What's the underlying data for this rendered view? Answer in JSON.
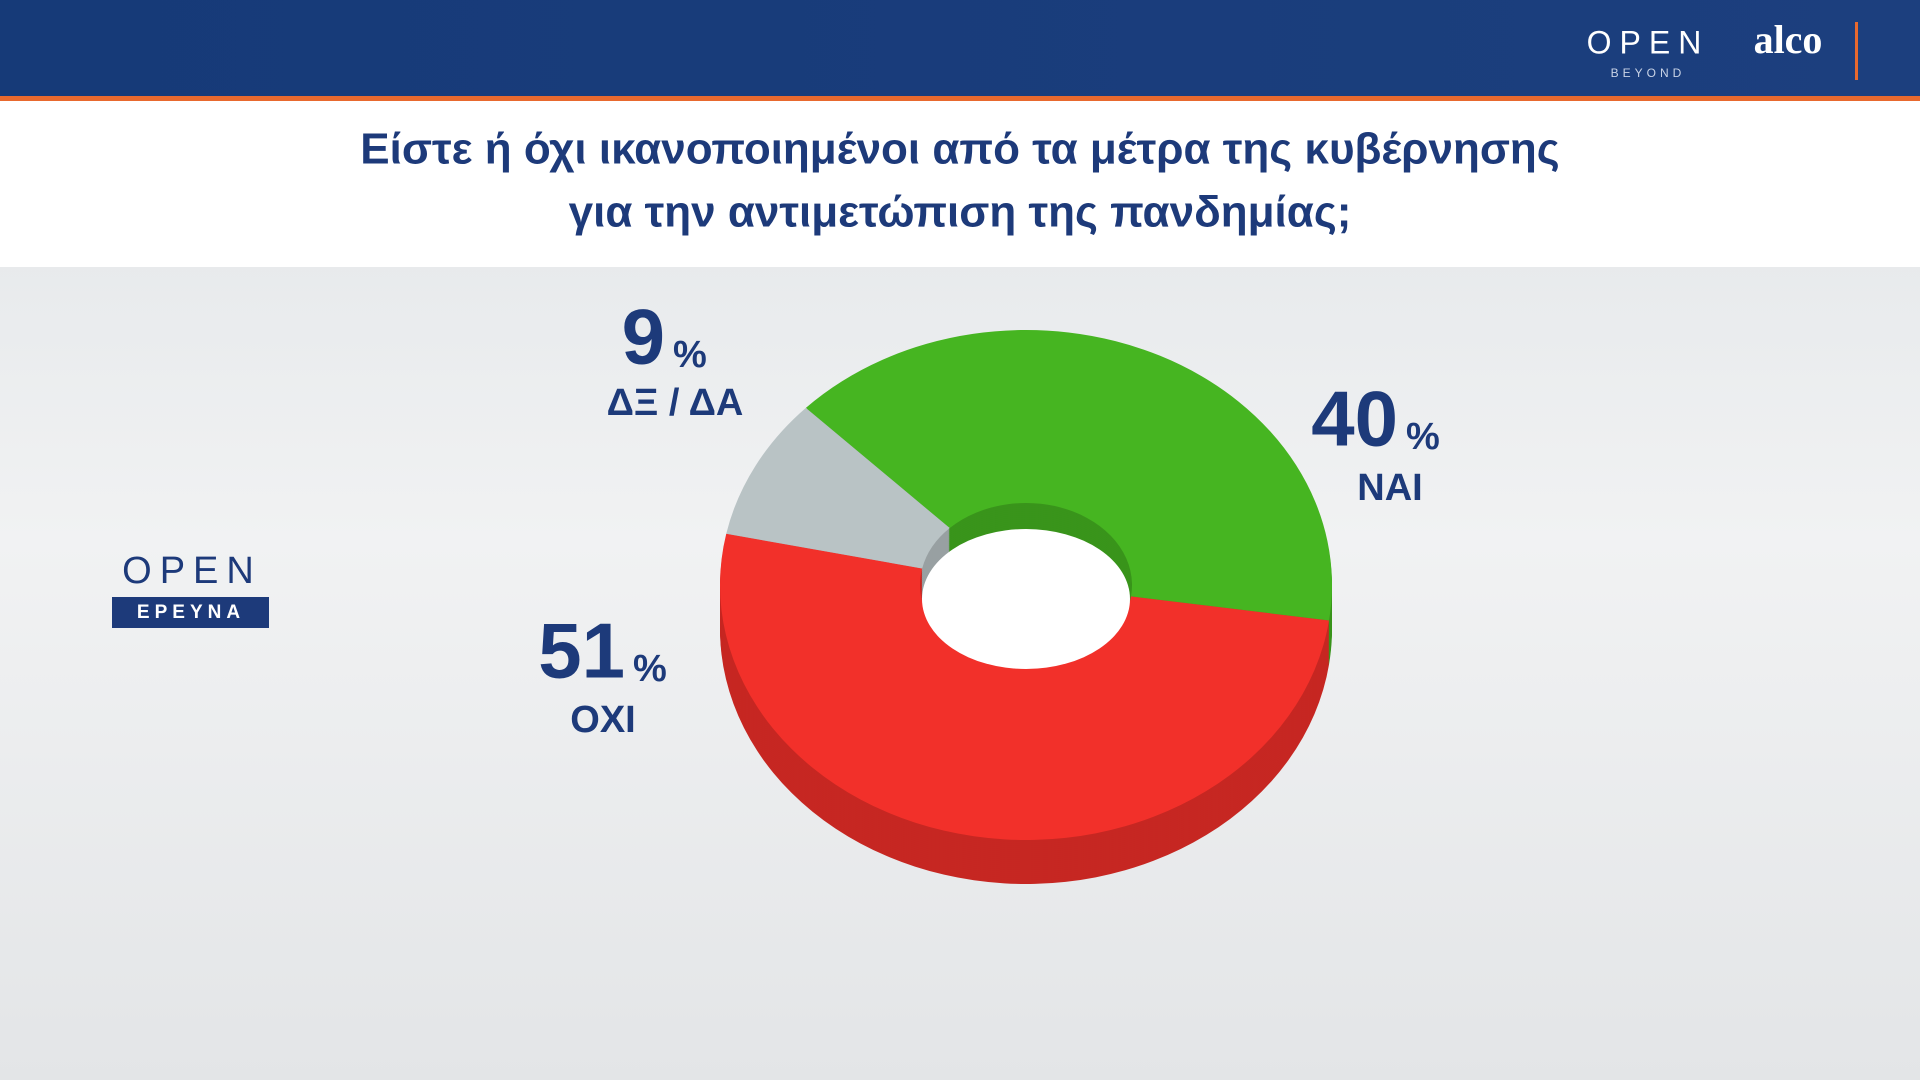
{
  "chart_data": {
    "type": "pie",
    "title": [
      "Είστε ή όχι ικανοποιημένοι από τα μέτρα της κυβέρνησης",
      "για την αντιμετώπιση της πανδημίας;"
    ],
    "categories": [
      "ΝΑΙ",
      "ΟΧΙ",
      "ΔΞ / ΔΑ"
    ],
    "values": [
      40,
      51,
      9
    ],
    "unit": "%",
    "colors": [
      "#46b521",
      "#f2302a",
      "#b9c3c5"
    ],
    "donut": true
  },
  "logos": {
    "open": "OPEN",
    "beyond": "BEYOND",
    "alco": "alco",
    "open_side": "OPEN",
    "research": "ΕΡΕΥΝΑ"
  }
}
